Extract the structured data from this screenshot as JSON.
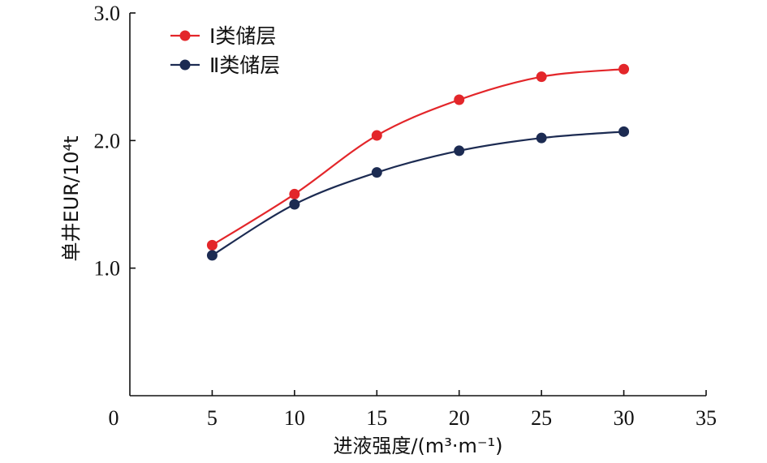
{
  "chart_data": {
    "type": "line",
    "title": "",
    "xlabel": "进液强度/(m³·m⁻¹)",
    "ylabel": "单井EUR/10⁴t",
    "xlim": [
      0,
      35
    ],
    "ylim": [
      0,
      3
    ],
    "x_ticks": [
      0,
      5,
      10,
      15,
      20,
      25,
      30,
      35
    ],
    "x_tick_labels": [
      "0",
      "5",
      "10",
      "15",
      "20",
      "25",
      "30",
      "35"
    ],
    "y_ticks": [
      1,
      2,
      3
    ],
    "y_tick_labels": [
      "1.0",
      "2.0",
      "3.0"
    ],
    "grid": false,
    "legend_position": "top-left",
    "x": [
      5,
      10,
      15,
      20,
      25,
      30
    ],
    "series": [
      {
        "name": "Ⅰ类储层",
        "color": "#e3262a",
        "values": [
          1.18,
          1.58,
          2.04,
          2.32,
          2.5,
          2.56
        ]
      },
      {
        "name": "Ⅱ类储层",
        "color": "#1c2b52",
        "values": [
          1.1,
          1.5,
          1.75,
          1.92,
          2.02,
          2.07
        ]
      }
    ]
  }
}
